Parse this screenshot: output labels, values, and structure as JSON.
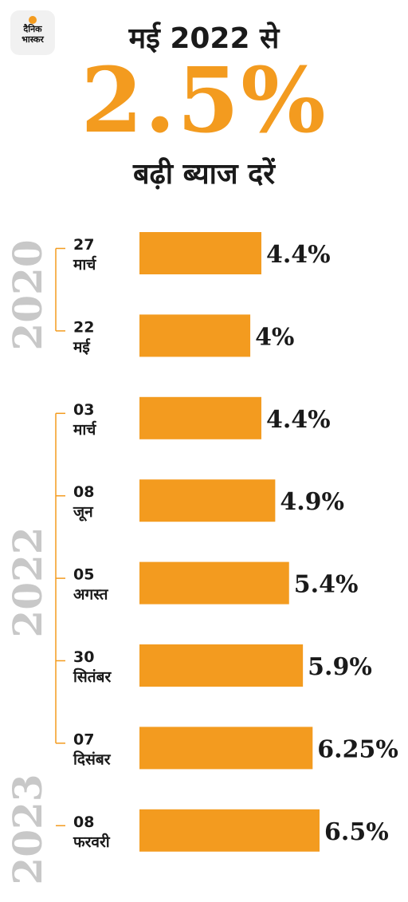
{
  "logo": {
    "line1": "दैनिक",
    "line2": "भास्कर"
  },
  "headline": {
    "top": "मई 2022 से",
    "big": "2.5%",
    "bottom": "बढ़ी ब्याज दरें"
  },
  "colors": {
    "bar": "#f39b1f",
    "year_text": "#c8c8c8",
    "bracket": "#f39b1f"
  },
  "chart_data": {
    "type": "bar",
    "orientation": "horizontal",
    "years": [
      {
        "label": "2020",
        "first": 0,
        "last": 1
      },
      {
        "label": "2022",
        "first": 2,
        "last": 6
      },
      {
        "label": "2023",
        "first": 7,
        "last": 7
      }
    ],
    "categories": [
      {
        "day": "27",
        "month": "मार्च"
      },
      {
        "day": "22",
        "month": "मई"
      },
      {
        "day": "03",
        "month": "मार्च"
      },
      {
        "day": "08",
        "month": "जून"
      },
      {
        "day": "05",
        "month": "अगस्त"
      },
      {
        "day": "30",
        "month": "सितंबर"
      },
      {
        "day": "07",
        "month": "दिसंबर"
      },
      {
        "day": "08",
        "month": "फरवरी"
      }
    ],
    "values": [
      4.4,
      4,
      4.4,
      4.9,
      5.4,
      5.9,
      6.25,
      6.5
    ],
    "value_labels": [
      "4.4%",
      "4%",
      "4.4%",
      "4.9%",
      "5.4%",
      "5.9%",
      "6.25%",
      "6.5%"
    ],
    "unit": "%",
    "xlim": [
      0,
      6.5
    ],
    "grid": false,
    "legend": "none"
  }
}
